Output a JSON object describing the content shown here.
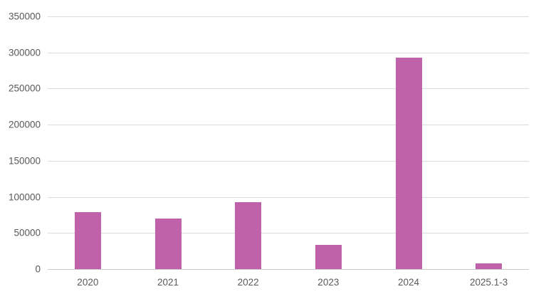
{
  "chart_data": {
    "type": "bar",
    "title": "",
    "xlabel": "",
    "ylabel": "",
    "categories": [
      "2020",
      "2021",
      "2022",
      "2023",
      "2024",
      "2025.1-3"
    ],
    "values": [
      79000,
      70000,
      93000,
      34000,
      293000,
      8000
    ],
    "ylim": [
      0,
      350000
    ],
    "ytick_step": 50000,
    "ytick_labels": [
      "0",
      "50000",
      "100000",
      "150000",
      "200000",
      "250000",
      "300000",
      "350000"
    ],
    "grid": true,
    "legend": false,
    "colors": {
      "bar": "#C062AA",
      "gridline": "#DCDCDC",
      "axis_line": "#C9C9C9",
      "tick_label": "#595959",
      "background": "#FFFFFF"
    }
  }
}
